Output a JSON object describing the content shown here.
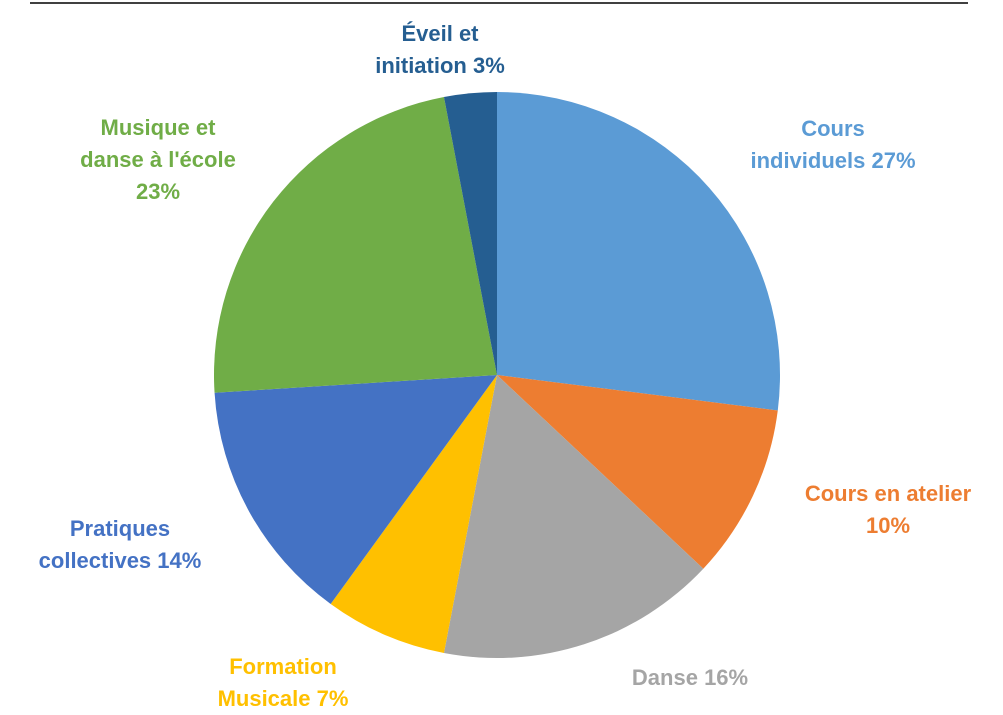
{
  "chart_data": {
    "type": "pie",
    "categories": [
      "Cours individuels",
      "Cours en atelier",
      "Danse",
      "Formation Musicale",
      "Pratiques collectives",
      "Musique et danse à l'école",
      "Éveil et initiation"
    ],
    "values": [
      27,
      10,
      16,
      7,
      14,
      23,
      3
    ],
    "value_labels": [
      "27%",
      "10%",
      "16%",
      "7%",
      "14%",
      "23%",
      "3%"
    ],
    "colors": [
      "#5b9bd5",
      "#ed7d31",
      "#a5a5a5",
      "#ffc000",
      "#4472c4",
      "#70ad47",
      "#255e91"
    ]
  }
}
